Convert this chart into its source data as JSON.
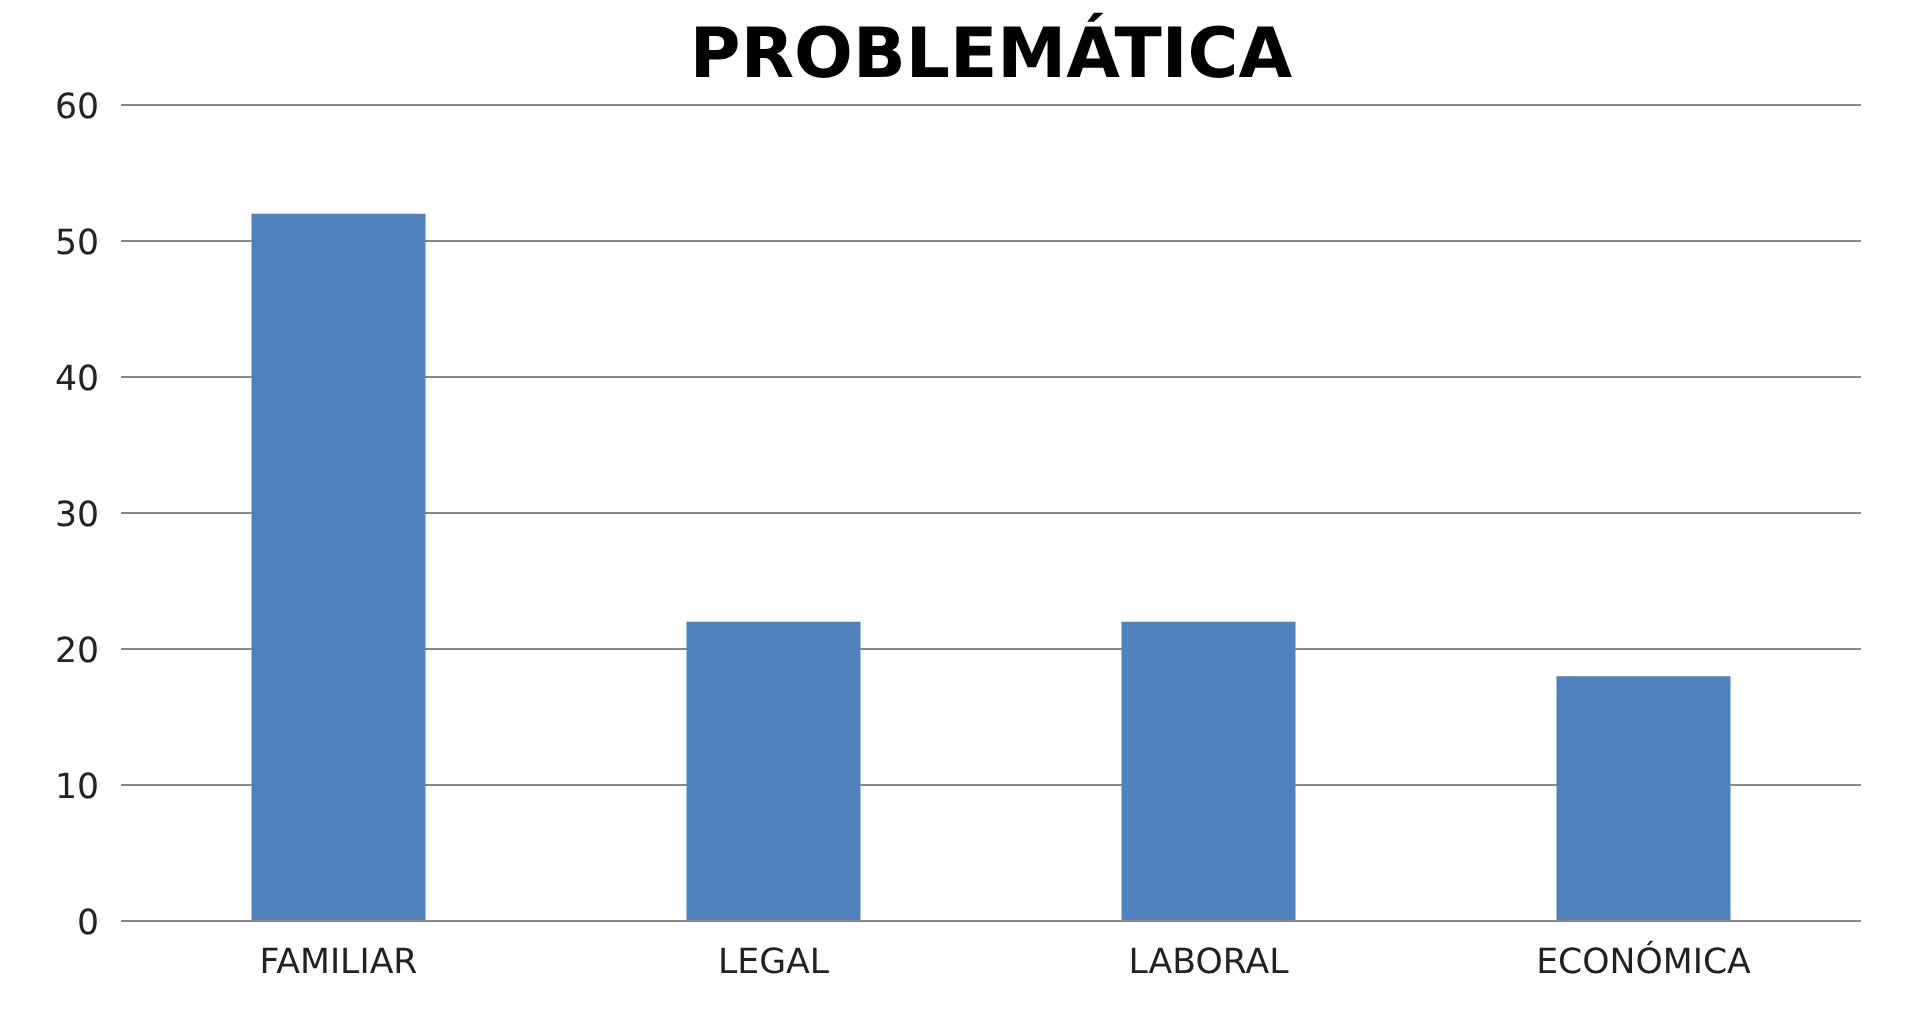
{
  "chart_data": {
    "type": "bar",
    "title": "PROBLEMÁTICA",
    "categories": [
      "FAMILIAR",
      "LEGAL",
      "LABORAL",
      "ECONÓMICA"
    ],
    "values": [
      52,
      22,
      22,
      18
    ],
    "color": "#4f81bd",
    "ylim": [
      0,
      60
    ],
    "yticks": [
      0,
      10,
      20,
      30,
      40,
      50,
      60
    ],
    "grid": "y"
  }
}
